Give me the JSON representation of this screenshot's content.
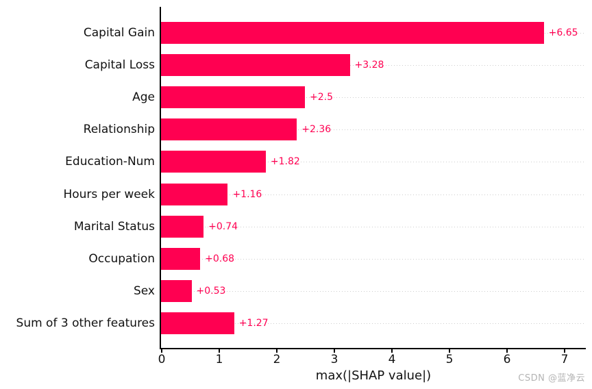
{
  "chart_data": {
    "type": "bar",
    "orientation": "horizontal",
    "title": "",
    "xlabel": "max(|SHAP value|)",
    "ylabel": "",
    "categories": [
      "Capital Gain",
      "Capital Loss",
      "Age",
      "Relationship",
      "Education-Num",
      "Hours per week",
      "Marital Status",
      "Occupation",
      "Sex",
      "Sum of 3 other features"
    ],
    "values": [
      6.65,
      3.28,
      2.5,
      2.36,
      1.82,
      1.16,
      0.74,
      0.68,
      0.53,
      1.27
    ],
    "value_labels": [
      "+6.65",
      "+3.28",
      "+2.5",
      "+2.36",
      "+1.82",
      "+1.16",
      "+0.74",
      "+0.68",
      "+0.53",
      "+1.27"
    ],
    "x_ticks": [
      "0",
      "1",
      "2",
      "3",
      "4",
      "5",
      "6",
      "7"
    ],
    "xlim": [
      0,
      7.38
    ],
    "grid": "horizontal-dotted-per-row",
    "legend": "none",
    "bar_color": "#ff0051",
    "value_label_color": "#ff0051",
    "gridline_color": "#cccccc"
  },
  "watermark": "CSDN @蓝净云"
}
